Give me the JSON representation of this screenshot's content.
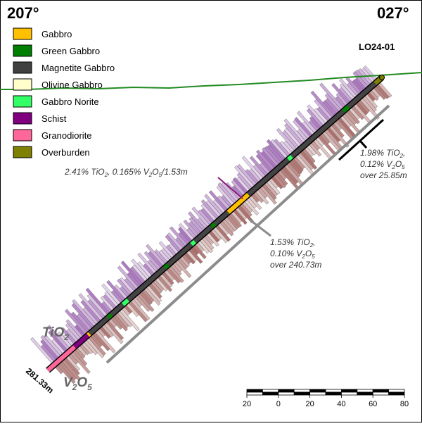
{
  "header": {
    "left_azimuth": "207°",
    "right_azimuth": "027°",
    "hole_id": "LO24-01"
  },
  "legend": [
    {
      "label": "Gabbro",
      "color": "#FFC000"
    },
    {
      "label": "Green Gabbro",
      "color": "#008000"
    },
    {
      "label": "Magnetite Gabbro",
      "color": "#404040"
    },
    {
      "label": "Olivine Gabbro",
      "color": "#FFFFCC"
    },
    {
      "label": "Gabbro Norite",
      "color": "#33FF66"
    },
    {
      "label": "Schist",
      "color": "#800080"
    },
    {
      "label": "Granodiorite",
      "color": "#FF6699"
    },
    {
      "label": "Overburden",
      "color": "#808000"
    }
  ],
  "annotations": {
    "intercept_upper": {
      "line1": "1.98% TiO",
      "sub1": "2",
      "tail1": ",",
      "line2": "0.12% V",
      "sub2a": "2",
      "mid2": "O",
      "sub2b": "5",
      "line3": "over 25.85m"
    },
    "intercept_narrow": {
      "a": "2.41% TiO",
      "a_sub": "2",
      "b": ", 0.165% V",
      "b_sub1": "2",
      "c": "O",
      "c_sub": "5",
      "d": "/1.53m"
    },
    "intercept_long": {
      "line1": "1.53% TiO",
      "sub1": "2",
      "tail1": ",",
      "line2": "0.10% V",
      "sub2a": "2",
      "mid2": "O",
      "sub2b": "5",
      "line3": "over 240.73m"
    },
    "tio2_label": {
      "main": "TiO",
      "sub": "2"
    },
    "v2o5_label": {
      "main": "V",
      "sub1": "2",
      "mid": "O",
      "sub2": "5"
    },
    "depth_label": "281.33m"
  },
  "scale_bar": {
    "ticks": [
      "20",
      "0",
      "20",
      "40",
      "60",
      "80"
    ]
  },
  "colors": {
    "ground_line": "#228B22",
    "hole_trace": "#333333",
    "tio2_bars": "#9B59B6",
    "v2o5_bars": "#A0524D",
    "guide_line": "#8C8C8C"
  }
}
